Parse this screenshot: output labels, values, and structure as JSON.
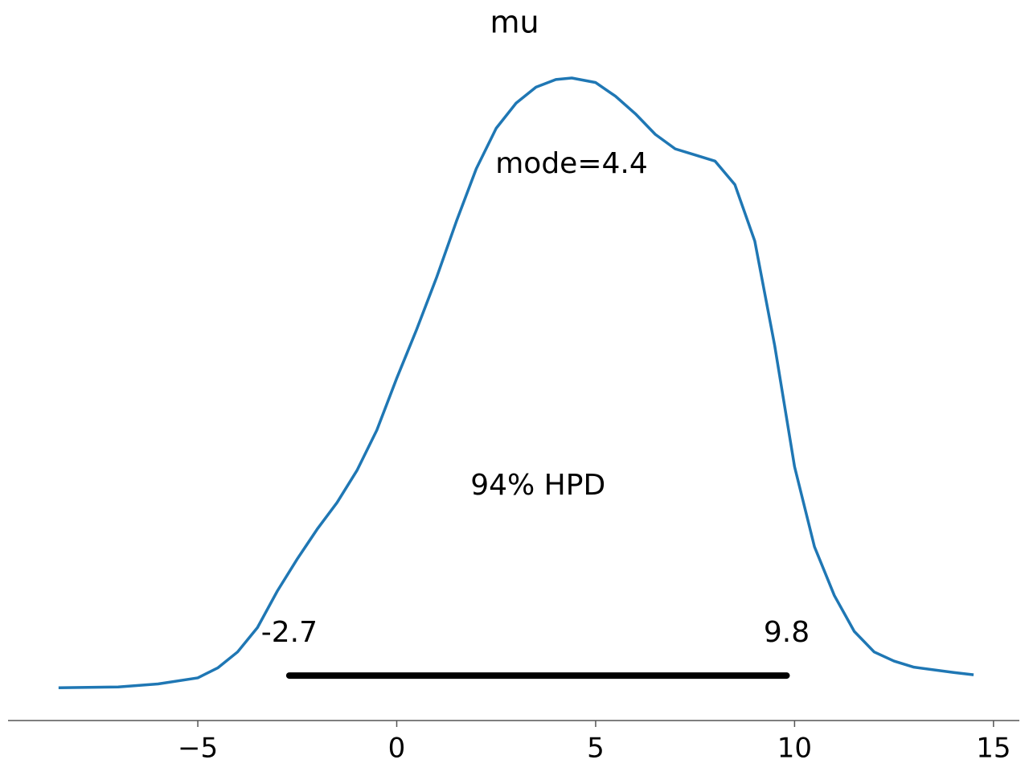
{
  "chart_data": {
    "type": "density",
    "title": "mu",
    "x": [
      -8.5,
      -7,
      -6,
      -5,
      -4.5,
      -4,
      -3.5,
      -3,
      -2.5,
      -2,
      -1.5,
      -1,
      -0.5,
      0,
      0.5,
      1,
      1.5,
      2,
      2.5,
      3,
      3.5,
      4,
      4.4,
      5,
      5.5,
      6,
      6.5,
      7,
      7.5,
      8,
      8.5,
      9,
      9.5,
      10,
      10.5,
      11,
      11.5,
      12,
      12.5,
      13,
      14,
      14.5
    ],
    "y": [
      0,
      0.0001,
      0.0005,
      0.0013,
      0.0026,
      0.0047,
      0.0079,
      0.0127,
      0.0169,
      0.0208,
      0.0243,
      0.0285,
      0.0338,
      0.0406,
      0.047,
      0.0538,
      0.0612,
      0.0681,
      0.0734,
      0.0767,
      0.0788,
      0.0798,
      0.08,
      0.0794,
      0.0776,
      0.0753,
      0.0726,
      0.0707,
      0.0699,
      0.0691,
      0.066,
      0.0586,
      0.0449,
      0.029,
      0.0185,
      0.0121,
      0.0074,
      0.0047,
      0.0035,
      0.0027,
      0.002,
      0.0017
    ],
    "color": "#1f77b4",
    "point_estimate_label": "mode=4.4",
    "hpd_label": "94% HPD",
    "hpd": [
      -2.7,
      9.8
    ],
    "hpd_color": "#000000",
    "xlim": [
      -9.77,
      15.65
    ],
    "ylim": [
      -0.0043,
      0.0839
    ],
    "xticks": [
      {
        "value": -5,
        "label": "−5"
      },
      0,
      5,
      10,
      15
    ]
  }
}
